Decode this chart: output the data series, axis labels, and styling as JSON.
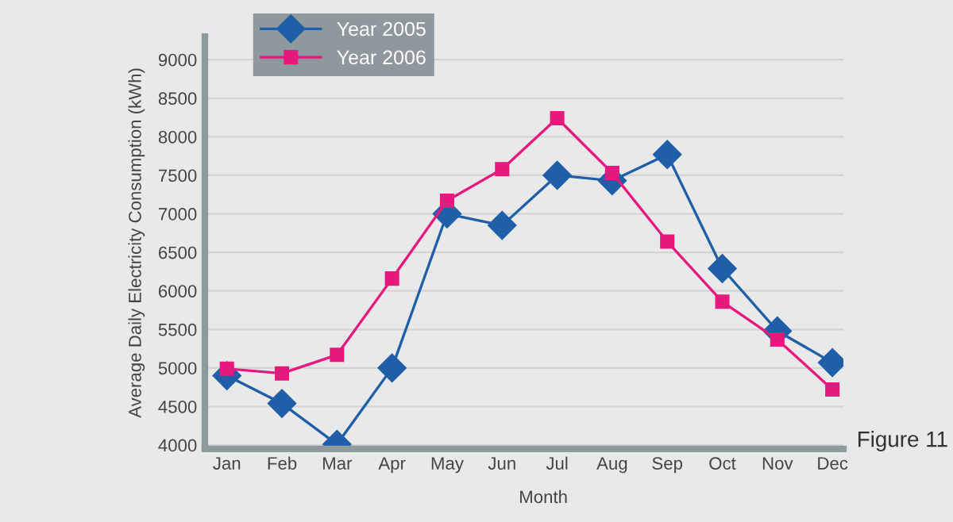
{
  "chart_data": {
    "type": "line",
    "ylabel": "Average Daily Electricity Consumption (kWh)",
    "xlabel": "Month",
    "categories": [
      "Jan",
      "Feb",
      "Mar",
      "Apr",
      "May",
      "Jun",
      "Jul",
      "Aug",
      "Sep",
      "Oct",
      "Nov",
      "Dec"
    ],
    "series": [
      {
        "name": "Year 2005",
        "color": "#1f5fa8",
        "marker": "diamond",
        "values": [
          4900,
          4540,
          4010,
          5000,
          7000,
          6850,
          7500,
          7430,
          7770,
          6290,
          5480,
          5070
        ]
      },
      {
        "name": "Year 2006",
        "color": "#e6197f",
        "marker": "square",
        "values": [
          4990,
          4930,
          5170,
          6160,
          7170,
          7580,
          8240,
          7530,
          6640,
          5860,
          5370,
          4720
        ]
      }
    ],
    "ylim": [
      3950,
      9300
    ],
    "yticks": [
      4000,
      4500,
      5000,
      5500,
      6000,
      6500,
      7000,
      7500,
      8000,
      8500,
      9000
    ],
    "grid": "y",
    "legend": "top left",
    "line_style": "solid",
    "annotations": [
      "Figure 11"
    ]
  }
}
